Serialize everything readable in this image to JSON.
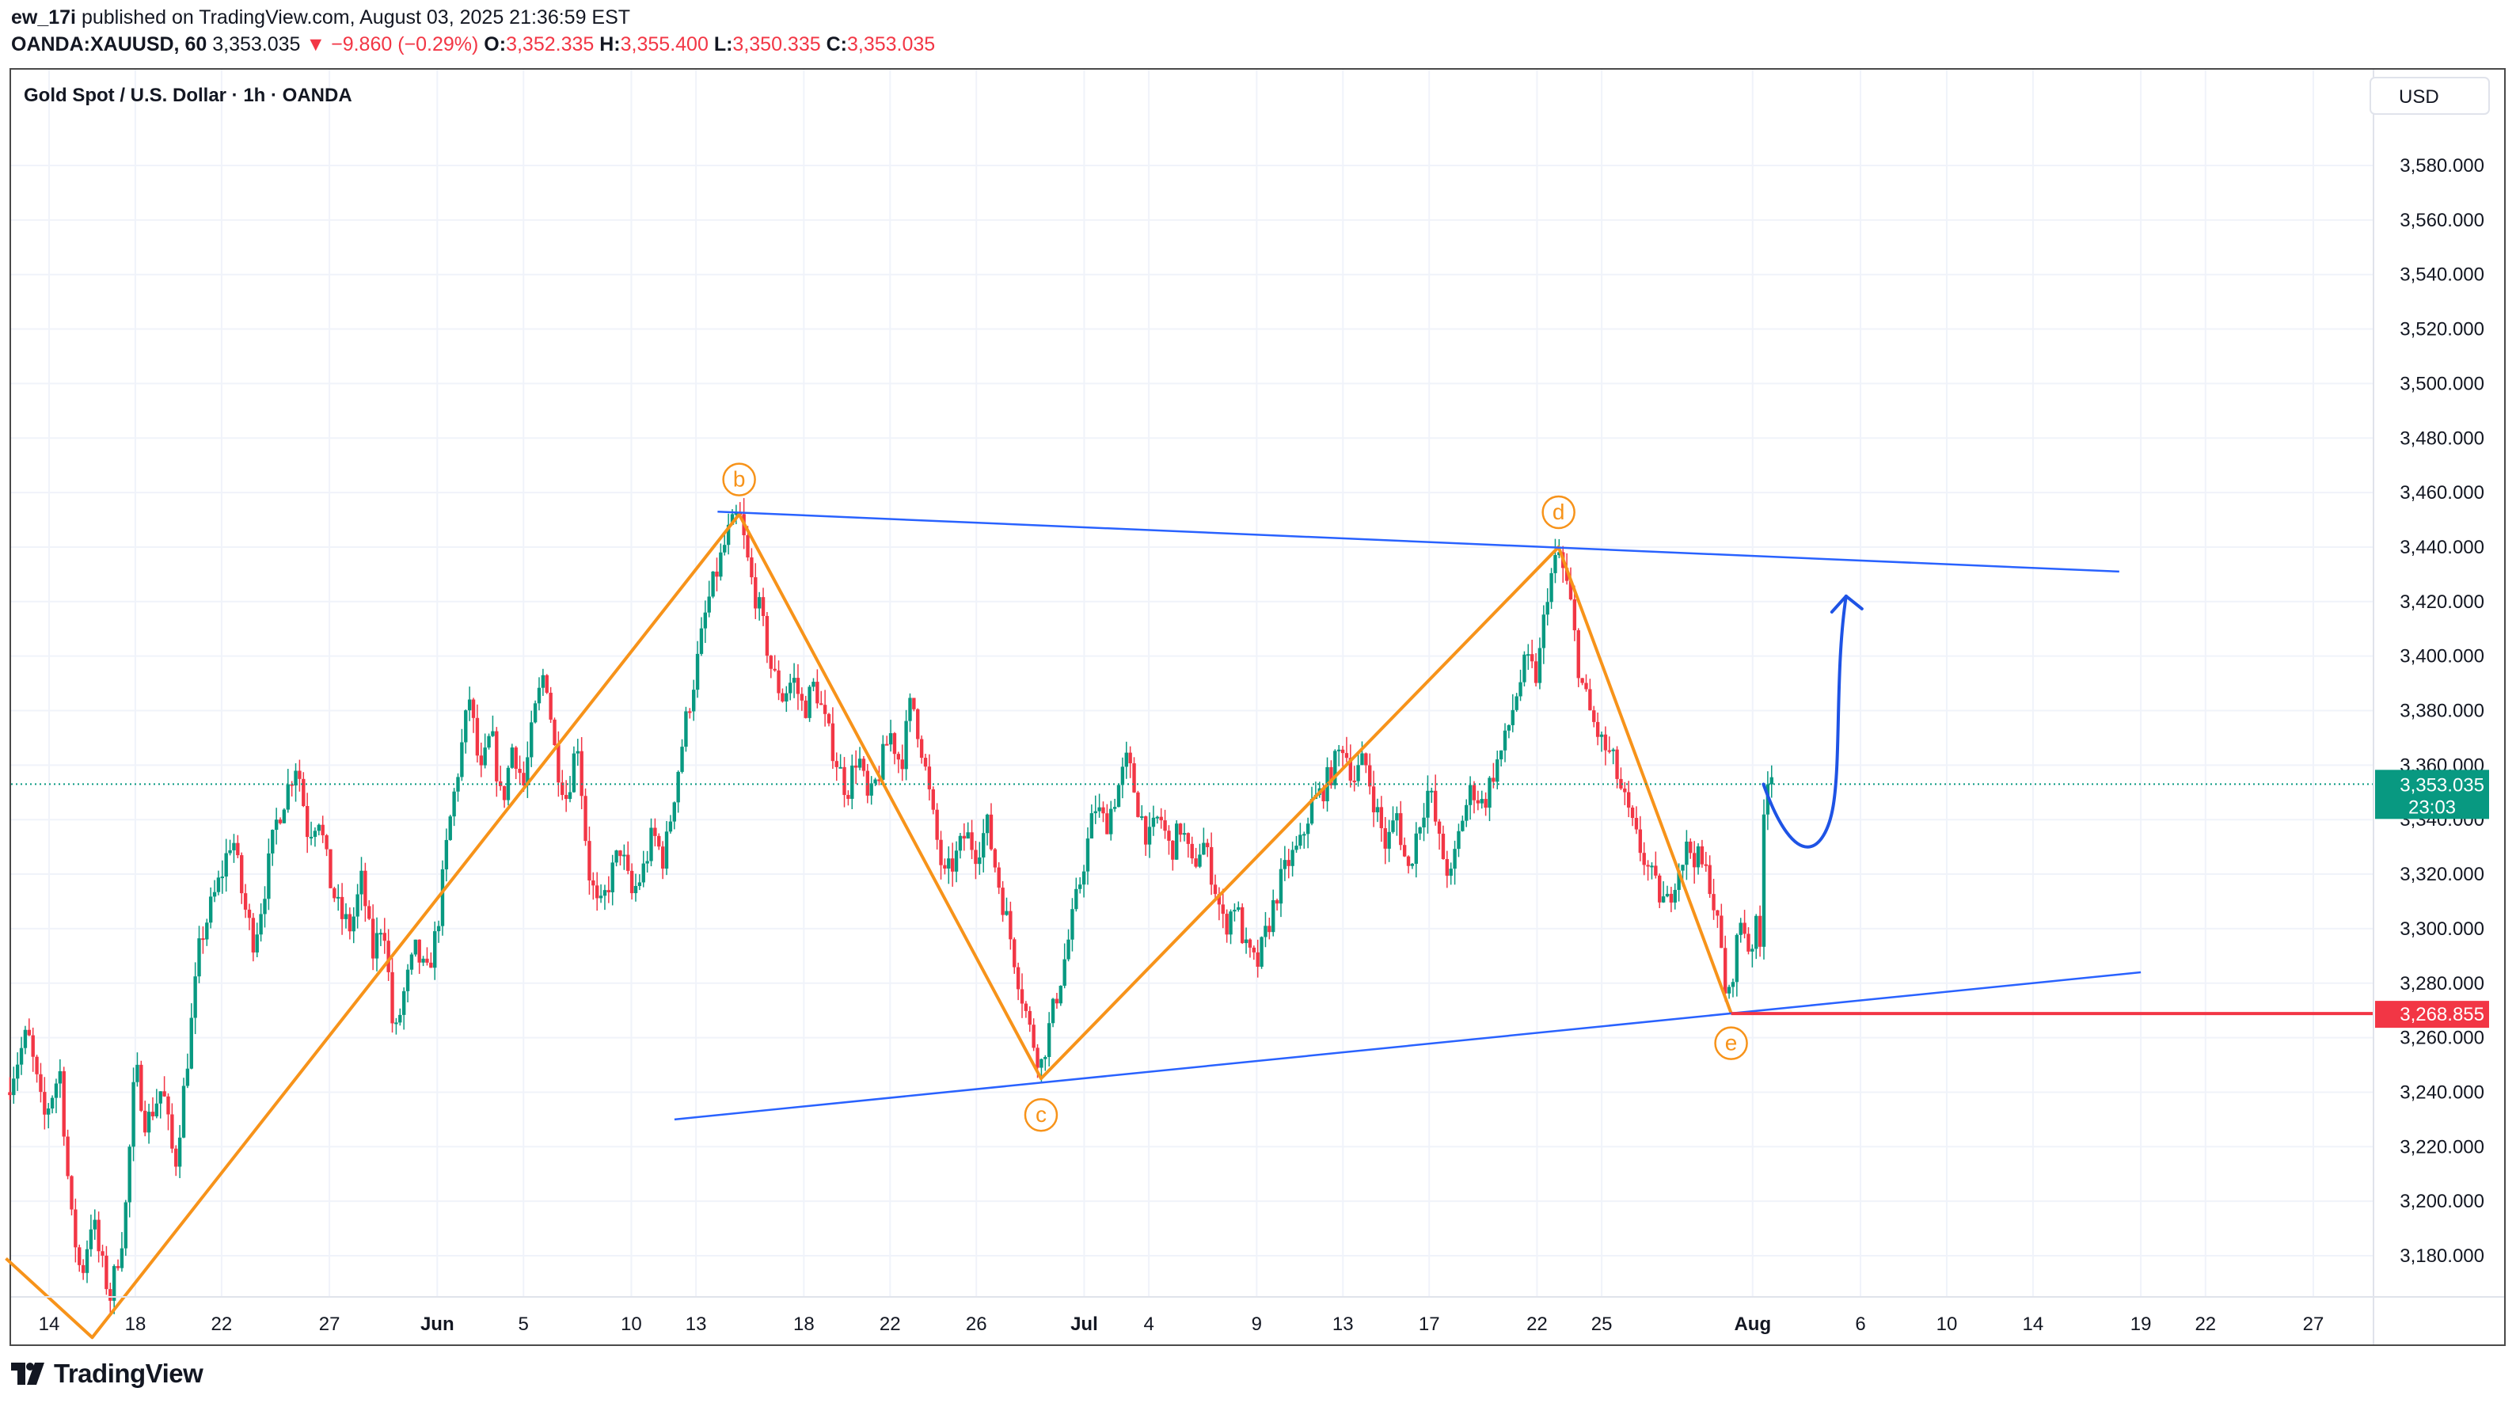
{
  "header": {
    "author": "ew_17i",
    "published_text": "published on TradingView.com, August 03, 2025 21:36:59 EST",
    "symbol": "OANDA:XAUUSD, 60",
    "last": "3,353.035",
    "change_arrow": "▼",
    "change": "−9.860 (−0.29%)",
    "o_label": "O:",
    "o": "3,352.335",
    "h_label": "H:",
    "h": "3,355.400",
    "l_label": "L:",
    "l": "3,350.335",
    "c_label": "C:",
    "c": "3,353.035"
  },
  "chart_data": {
    "type": "candlestick",
    "title": "Gold Spot / U.S. Dollar · 1h · OANDA",
    "currency": "USD",
    "ylim": [
      3160,
      3600
    ],
    "y_ticks": [
      3180,
      3200,
      3220,
      3240,
      3260,
      3280,
      3300,
      3320,
      3340,
      3360,
      3380,
      3400,
      3420,
      3440,
      3460,
      3480,
      3500,
      3520,
      3540,
      3560,
      3580
    ],
    "y_tick_labels": [
      "3,180.000",
      "3,200.000",
      "3,220.000",
      "3,240.000",
      "3,260.000",
      "3,280.000",
      "3,300.000",
      "3,320.000",
      "3,340.000",
      "3,360.000",
      "3,380.000",
      "3,400.000",
      "3,420.000",
      "3,440.000",
      "3,460.000",
      "3,480.000",
      "3,500.000",
      "3,520.000",
      "3,540.000",
      "3,560.000",
      "3,580.000"
    ],
    "x_ticks": [
      {
        "label": "14",
        "date": "2025-05-14",
        "bold": false
      },
      {
        "label": "18",
        "date": "2025-05-18",
        "bold": false
      },
      {
        "label": "22",
        "date": "2025-05-22",
        "bold": false
      },
      {
        "label": "27",
        "date": "2025-05-27",
        "bold": false
      },
      {
        "label": "Jun",
        "date": "2025-06-01",
        "bold": true
      },
      {
        "label": "5",
        "date": "2025-06-05",
        "bold": false
      },
      {
        "label": "10",
        "date": "2025-06-10",
        "bold": false
      },
      {
        "label": "13",
        "date": "2025-06-13",
        "bold": false
      },
      {
        "label": "18",
        "date": "2025-06-18",
        "bold": false
      },
      {
        "label": "22",
        "date": "2025-06-22",
        "bold": false
      },
      {
        "label": "26",
        "date": "2025-06-26",
        "bold": false
      },
      {
        "label": "Jul",
        "date": "2025-07-01",
        "bold": true
      },
      {
        "label": "4",
        "date": "2025-07-04",
        "bold": false
      },
      {
        "label": "9",
        "date": "2025-07-09",
        "bold": false
      },
      {
        "label": "13",
        "date": "2025-07-13",
        "bold": false
      },
      {
        "label": "17",
        "date": "2025-07-17",
        "bold": false
      },
      {
        "label": "22",
        "date": "2025-07-22",
        "bold": false
      },
      {
        "label": "25",
        "date": "2025-07-25",
        "bold": false
      },
      {
        "label": "Aug",
        "date": "2025-08-01",
        "bold": true
      },
      {
        "label": "6",
        "date": "2025-08-06",
        "bold": false
      },
      {
        "label": "10",
        "date": "2025-08-10",
        "bold": false
      },
      {
        "label": "14",
        "date": "2025-08-14",
        "bold": false
      },
      {
        "label": "19",
        "date": "2025-08-19",
        "bold": false
      },
      {
        "label": "22",
        "date": "2025-08-22",
        "bold": false
      },
      {
        "label": "27",
        "date": "2025-08-27",
        "bold": false
      }
    ],
    "price_path": [
      [
        "2025-05-12T00",
        3240
      ],
      [
        "2025-05-13T00",
        3262
      ],
      [
        "2025-05-13T18",
        3230
      ],
      [
        "2025-05-14T12",
        3248
      ],
      [
        "2025-05-15T00",
        3195
      ],
      [
        "2025-05-15T12",
        3172
      ],
      [
        "2025-05-16T00",
        3195
      ],
      [
        "2025-05-16T08",
        3180
      ],
      [
        "2025-05-16T20",
        3165
      ],
      [
        "2025-05-17T12",
        3192
      ],
      [
        "2025-05-18T00",
        3250
      ],
      [
        "2025-05-18T12",
        3228
      ],
      [
        "2025-05-19T06",
        3242
      ],
      [
        "2025-05-19T20",
        3212
      ],
      [
        "2025-05-20T12",
        3258
      ],
      [
        "2025-05-21T00",
        3295
      ],
      [
        "2025-05-21T12",
        3308
      ],
      [
        "2025-05-22T00",
        3320
      ],
      [
        "2025-05-22T12",
        3335
      ],
      [
        "2025-05-23T00",
        3310
      ],
      [
        "2025-05-23T12",
        3295
      ],
      [
        "2025-05-24T00",
        3315
      ],
      [
        "2025-05-24T12",
        3338
      ],
      [
        "2025-05-25T00",
        3350
      ],
      [
        "2025-05-25T12",
        3362
      ],
      [
        "2025-05-26T00",
        3335
      ],
      [
        "2025-05-26T12",
        3342
      ],
      [
        "2025-05-27T00",
        3318
      ],
      [
        "2025-05-27T12",
        3305
      ],
      [
        "2025-05-28T00",
        3300
      ],
      [
        "2025-05-28T12",
        3318
      ],
      [
        "2025-05-29T00",
        3290
      ],
      [
        "2025-05-29T12",
        3305
      ],
      [
        "2025-05-30T00",
        3258
      ],
      [
        "2025-05-30T12",
        3278
      ],
      [
        "2025-05-31T00",
        3292
      ],
      [
        "2025-05-31T12",
        3282
      ],
      [
        "2025-06-01T00",
        3300
      ],
      [
        "2025-06-01T12",
        3335
      ],
      [
        "2025-06-02T00",
        3360
      ],
      [
        "2025-06-02T12",
        3385
      ],
      [
        "2025-06-03T00",
        3355
      ],
      [
        "2025-06-03T12",
        3372
      ],
      [
        "2025-06-04T00",
        3345
      ],
      [
        "2025-06-04T12",
        3368
      ],
      [
        "2025-06-05T00",
        3352
      ],
      [
        "2025-06-05T12",
        3378
      ],
      [
        "2025-06-06T00",
        3396
      ],
      [
        "2025-06-06T12",
        3362
      ],
      [
        "2025-06-07T00",
        3348
      ],
      [
        "2025-06-07T12",
        3370
      ],
      [
        "2025-06-08T00",
        3322
      ],
      [
        "2025-06-08T12",
        3305
      ],
      [
        "2025-06-09T00",
        3318
      ],
      [
        "2025-06-09T12",
        3330
      ],
      [
        "2025-06-10T00",
        3312
      ],
      [
        "2025-06-10T12",
        3320
      ],
      [
        "2025-06-11T00",
        3335
      ],
      [
        "2025-06-11T12",
        3325
      ],
      [
        "2025-06-12T00",
        3350
      ],
      [
        "2025-06-12T12",
        3375
      ],
      [
        "2025-06-13T00",
        3395
      ],
      [
        "2025-06-13T12",
        3418
      ],
      [
        "2025-06-14T00",
        3432
      ],
      [
        "2025-06-14T12",
        3445
      ],
      [
        "2025-06-15T00",
        3452
      ],
      [
        "2025-06-15T12",
        3430
      ],
      [
        "2025-06-16T00",
        3415
      ],
      [
        "2025-06-16T12",
        3395
      ],
      [
        "2025-06-17T00",
        3385
      ],
      [
        "2025-06-17T12",
        3392
      ],
      [
        "2025-06-18T00",
        3380
      ],
      [
        "2025-06-18T12",
        3390
      ],
      [
        "2025-06-19T00",
        3375
      ],
      [
        "2025-06-19T12",
        3362
      ],
      [
        "2025-06-20T00",
        3350
      ],
      [
        "2025-06-20T12",
        3365
      ],
      [
        "2025-06-21T00",
        3345
      ],
      [
        "2025-06-21T12",
        3358
      ],
      [
        "2025-06-22T00",
        3372
      ],
      [
        "2025-06-22T12",
        3360
      ],
      [
        "2025-06-23T00",
        3385
      ],
      [
        "2025-06-23T12",
        3365
      ],
      [
        "2025-06-24T00",
        3340
      ],
      [
        "2025-06-24T12",
        3318
      ],
      [
        "2025-06-25T00",
        3325
      ],
      [
        "2025-06-25T12",
        3335
      ],
      [
        "2025-06-26T00",
        3328
      ],
      [
        "2025-06-26T12",
        3338
      ],
      [
        "2025-06-27T00",
        3318
      ],
      [
        "2025-06-27T12",
        3300
      ],
      [
        "2025-06-28T00",
        3280
      ],
      [
        "2025-06-28T12",
        3262
      ],
      [
        "2025-06-29T00",
        3250
      ],
      [
        "2025-06-29T12",
        3268
      ],
      [
        "2025-06-30T00",
        3285
      ],
      [
        "2025-06-30T12",
        3305
      ],
      [
        "2025-07-01T00",
        3325
      ],
      [
        "2025-07-01T12",
        3345
      ],
      [
        "2025-07-02T00",
        3338
      ],
      [
        "2025-07-02T12",
        3350
      ],
      [
        "2025-07-03T00",
        3362
      ],
      [
        "2025-07-03T12",
        3345
      ],
      [
        "2025-07-04T00",
        3332
      ],
      [
        "2025-07-04T12",
        3342
      ],
      [
        "2025-07-05T00",
        3328
      ],
      [
        "2025-07-05T12",
        3338
      ],
      [
        "2025-07-06T00",
        3322
      ],
      [
        "2025-07-06T12",
        3332
      ],
      [
        "2025-07-07T00",
        3318
      ],
      [
        "2025-07-07T12",
        3300
      ],
      [
        "2025-07-08T00",
        3310
      ],
      [
        "2025-07-08T12",
        3292
      ],
      [
        "2025-07-09T00",
        3286
      ],
      [
        "2025-07-09T12",
        3300
      ],
      [
        "2025-07-10T00",
        3315
      ],
      [
        "2025-07-10T12",
        3325
      ],
      [
        "2025-07-11T00",
        3330
      ],
      [
        "2025-07-11T12",
        3345
      ],
      [
        "2025-07-12T00",
        3350
      ],
      [
        "2025-07-12T12",
        3358
      ],
      [
        "2025-07-13T00",
        3368
      ],
      [
        "2025-07-13T12",
        3355
      ],
      [
        "2025-07-14T00",
        3362
      ],
      [
        "2025-07-14T12",
        3345
      ],
      [
        "2025-07-15T00",
        3330
      ],
      [
        "2025-07-15T12",
        3342
      ],
      [
        "2025-07-16T00",
        3320
      ],
      [
        "2025-07-16T12",
        3338
      ],
      [
        "2025-07-17T00",
        3352
      ],
      [
        "2025-07-17T12",
        3330
      ],
      [
        "2025-07-18T00",
        3318
      ],
      [
        "2025-07-18T12",
        3340
      ],
      [
        "2025-07-19T00",
        3352
      ],
      [
        "2025-07-19T12",
        3345
      ],
      [
        "2025-07-20T00",
        3358
      ],
      [
        "2025-07-20T12",
        3368
      ],
      [
        "2025-07-21T00",
        3385
      ],
      [
        "2025-07-21T12",
        3398
      ],
      [
        "2025-07-22T00",
        3392
      ],
      [
        "2025-07-22T12",
        3425
      ],
      [
        "2025-07-23T00",
        3438
      ],
      [
        "2025-07-23T12",
        3422
      ],
      [
        "2025-07-24T00",
        3392
      ],
      [
        "2025-07-24T12",
        3378
      ],
      [
        "2025-07-25T00",
        3368
      ],
      [
        "2025-07-25T12",
        3362
      ],
      [
        "2025-07-26T00",
        3348
      ],
      [
        "2025-07-26T12",
        3335
      ],
      [
        "2025-07-27T00",
        3325
      ],
      [
        "2025-07-27T12",
        3315
      ],
      [
        "2025-07-28T00",
        3308
      ],
      [
        "2025-07-28T12",
        3322
      ],
      [
        "2025-07-29T00",
        3330
      ],
      [
        "2025-07-29T12",
        3325
      ],
      [
        "2025-07-30T00",
        3318
      ],
      [
        "2025-07-30T12",
        3295
      ],
      [
        "2025-07-30T20",
        3270
      ],
      [
        "2025-07-31T04",
        3290
      ],
      [
        "2025-07-31T12",
        3305
      ],
      [
        "2025-07-31T20",
        3292
      ],
      [
        "2025-08-01T04",
        3300
      ],
      [
        "2025-08-01T08",
        3290
      ],
      [
        "2025-08-01T12",
        3345
      ],
      [
        "2025-08-01T20",
        3362
      ],
      [
        "2025-08-02T00",
        3353
      ]
    ],
    "last_price": {
      "value": 3353.035,
      "label": "3,353.035",
      "countdown": "23:03",
      "color": "#089981"
    },
    "price_line": {
      "value": 3268.855,
      "label": "3,268.855",
      "color": "#f23645"
    },
    "wave_labels": [
      {
        "label": "b",
        "date": "2025-06-15T00",
        "value": 3452
      },
      {
        "label": "c",
        "date": "2025-06-29T00",
        "value": 3245
      },
      {
        "label": "d",
        "date": "2025-07-23T00",
        "value": 3440
      },
      {
        "label": "e",
        "date": "2025-07-31T00",
        "value": 3269
      }
    ],
    "wave_path": [
      [
        "2025-05-12T00",
        3179
      ],
      [
        "2025-05-16T00",
        3150
      ],
      [
        "2025-06-15T00",
        3452
      ],
      [
        "2025-06-29T00",
        3245
      ],
      [
        "2025-07-23T00",
        3440
      ],
      [
        "2025-07-31T00",
        3269
      ]
    ],
    "upper_trendline": [
      [
        "2025-06-14T00",
        3453
      ],
      [
        "2025-08-18T00",
        3431
      ]
    ],
    "lower_trendline": [
      [
        "2025-06-12T00",
        3230
      ],
      [
        "2025-08-19T00",
        3284
      ]
    ],
    "projection": [
      [
        "2025-08-01T12",
        3353
      ],
      [
        "2025-08-03T00",
        3340
      ],
      [
        "2025-08-04T00",
        3345
      ],
      [
        "2025-08-05T00",
        3395
      ],
      [
        "2025-08-05T08",
        3422
      ]
    ],
    "colors": {
      "up": "#089981",
      "down": "#f23645",
      "wave": "#f7931a",
      "trend": "#2962ff",
      "grid": "#f0f3fa"
    }
  },
  "branding": {
    "name": "TradingView"
  }
}
